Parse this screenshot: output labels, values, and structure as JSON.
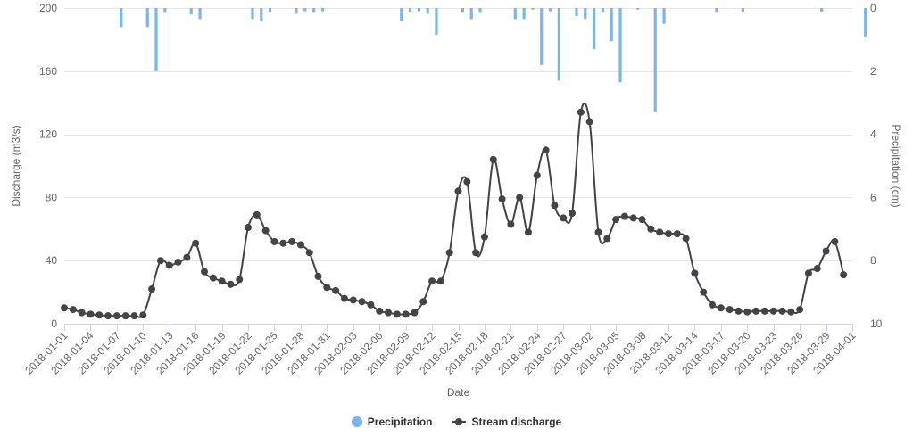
{
  "chart_data": {
    "type": "bar+line",
    "x_axis": {
      "title": "Date",
      "start": "2018-01-01",
      "end": "2018-04-01",
      "tick_labels": [
        "2018-01-01",
        "2018-01-04",
        "2018-01-07",
        "2018-01-10",
        "2018-01-13",
        "2018-01-16",
        "2018-01-19",
        "2018-01-22",
        "2018-01-25",
        "2018-01-28",
        "2018-01-31",
        "2018-02-03",
        "2018-02-06",
        "2018-02-09",
        "2018-02-12",
        "2018-02-15",
        "2018-02-18",
        "2018-02-21",
        "2018-02-24",
        "2018-02-27",
        "2018-03-02",
        "2018-03-05",
        "2018-03-08",
        "2018-03-11",
        "2018-03-14",
        "2018-03-17",
        "2018-03-20",
        "2018-03-23",
        "2018-03-26",
        "2018-03-29",
        "2018-04-01"
      ]
    },
    "y_axis_left": {
      "title": "Discharge (m3/s)",
      "min": 0,
      "max": 200,
      "ticks": [
        0,
        40,
        80,
        120,
        160,
        200
      ]
    },
    "y_axis_right": {
      "title": "Precipitation (cm)",
      "min": 0,
      "max": 10,
      "reversed": true,
      "ticks": [
        0,
        2,
        4,
        6,
        8,
        10
      ]
    },
    "grid": true,
    "legend_position": "bottom-center",
    "series": [
      {
        "name": "Precipitation",
        "type": "bar",
        "axis": "right",
        "color": "#7cb5ec",
        "values": [
          0,
          0,
          0,
          0,
          0,
          0,
          0.6,
          0,
          0,
          0.6,
          2,
          0.15,
          0,
          0,
          0.2,
          0.35,
          0,
          0,
          0,
          0,
          0,
          0.35,
          0.4,
          0.12,
          0,
          0,
          0.18,
          0.1,
          0.15,
          0.1,
          0,
          0,
          0,
          0,
          0,
          0,
          0,
          0,
          0.4,
          0.12,
          0.1,
          0.18,
          0.85,
          0,
          0,
          0.15,
          0.35,
          0.15,
          0,
          0,
          0,
          0.35,
          0.35,
          0.05,
          1.8,
          0.1,
          2.3,
          0,
          0.25,
          0.35,
          1.3,
          0.12,
          1.05,
          2.35,
          0,
          0.05,
          0,
          3.3,
          0.5,
          0,
          0,
          0,
          0,
          0,
          0.15,
          0,
          0,
          0.12,
          0,
          0,
          0,
          0,
          0,
          0,
          0,
          0,
          0.12,
          0,
          0,
          0,
          0,
          0.9,
          0,
          0,
          0,
          0,
          0,
          0,
          0,
          0,
          0,
          0,
          0,
          0,
          0,
          0,
          0,
          0,
          0,
          0,
          0,
          0,
          0,
          0,
          0,
          0,
          0,
          0,
          0,
          0,
          0,
          0,
          0,
          0,
          0,
          0,
          0,
          0,
          0,
          0,
          0,
          0,
          0,
          0,
          0,
          0,
          0,
          0,
          0,
          0,
          0,
          0
        ]
      },
      {
        "name": "Stream discharge",
        "type": "line",
        "axis": "left",
        "color": "#434348",
        "values": [
          10,
          9,
          7,
          6,
          5.5,
          5,
          5,
          5,
          5,
          5.5,
          22,
          40,
          37,
          39,
          42,
          51,
          33,
          29,
          27,
          25,
          28,
          61,
          69,
          59,
          52,
          51,
          52,
          50,
          45,
          30,
          23,
          21,
          16,
          15,
          14,
          12,
          8,
          7,
          6,
          6,
          7,
          14,
          27,
          27,
          45,
          84,
          90,
          45,
          55,
          104,
          79,
          63,
          80,
          58,
          94,
          110,
          75,
          67,
          70,
          134,
          128,
          58,
          54,
          66,
          68,
          67,
          66,
          60,
          58,
          57,
          57,
          54,
          32,
          20,
          12,
          10,
          9,
          8,
          7.5,
          8,
          8,
          8,
          8,
          7.5,
          9,
          32,
          35,
          46,
          52,
          31
        ]
      }
    ]
  },
  "legend": {
    "precipitation_label": "Precipitation",
    "discharge_label": "Stream discharge",
    "precipitation_color": "#7cb5ec",
    "discharge_color": "#434348"
  }
}
